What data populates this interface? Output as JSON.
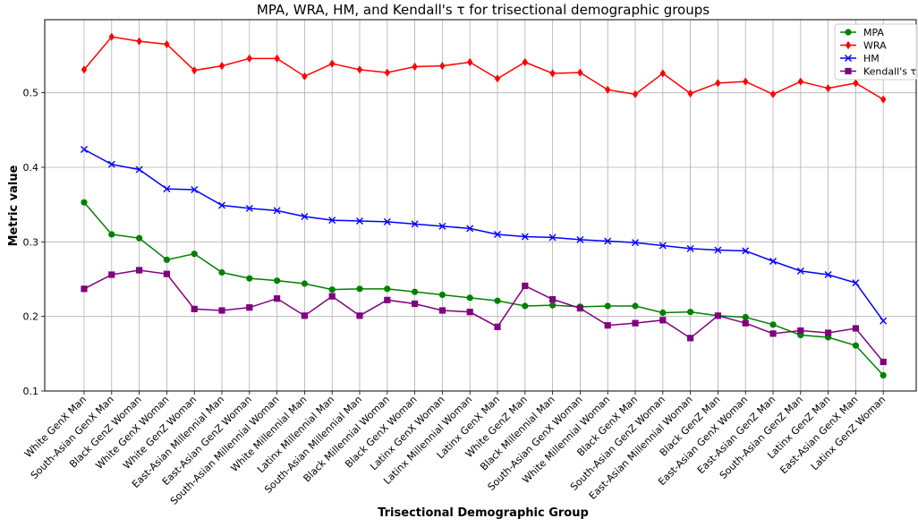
{
  "chart_data": {
    "type": "line",
    "title": "MPA, WRA, HM, and Kendall's τ for trisectional demographic groups",
    "xlabel": "Trisectional Demographic Group",
    "ylabel": "Metric value",
    "ylim": [
      0.1,
      0.598
    ],
    "yticks": [
      "0.1",
      "0.2",
      "0.3",
      "0.4",
      "0.5"
    ],
    "grid": true,
    "legend_position": "top-right",
    "categories": [
      "White GenX Man",
      "South-Asian GenX Man",
      "Black GenZ Woman",
      "White GenX Woman",
      "White GenZ Woman",
      "East-Asian Millennial Man",
      "East-Asian GenZ Woman",
      "South-Asian Millennial Woman",
      "White Millennial Man",
      "Latinx Millennial Man",
      "South-Asian Millennial Man",
      "Black Millennial Woman",
      "Black GenX Woman",
      "Latinx GenX Woman",
      "Latinx Millennial Woman",
      "Latinx GenX Man",
      "White GenZ Man",
      "Black Millennial Man",
      "South-Asian GenX Woman",
      "White Millennial Woman",
      "Black GenX Man",
      "South-Asian GenZ Woman",
      "East-Asian Millennial Woman",
      "Black GenZ Man",
      "East-Asian GenX Woman",
      "East-Asian GenZ Man",
      "South-Asian GenZ Man",
      "Latinx GenZ Man",
      "East-Asian GenX Man",
      "Latinx GenZ Woman"
    ],
    "series": [
      {
        "name": "MPA",
        "color": "#008000",
        "marker": "circle",
        "values": [
          0.353,
          0.31,
          0.305,
          0.276,
          0.284,
          0.259,
          0.251,
          0.248,
          0.244,
          0.236,
          0.237,
          0.237,
          0.233,
          0.229,
          0.225,
          0.221,
          0.214,
          0.215,
          0.213,
          0.214,
          0.214,
          0.205,
          0.206,
          0.201,
          0.199,
          0.189,
          0.175,
          0.172,
          0.161,
          0.121
        ]
      },
      {
        "name": "WRA",
        "color": "#ff0000",
        "marker": "diamond",
        "values": [
          0.531,
          0.575,
          0.569,
          0.565,
          0.53,
          0.536,
          0.546,
          0.546,
          0.522,
          0.539,
          0.531,
          0.527,
          0.535,
          0.536,
          0.541,
          0.519,
          0.541,
          0.526,
          0.527,
          0.504,
          0.498,
          0.526,
          0.499,
          0.513,
          0.515,
          0.498,
          0.515,
          0.506,
          0.513,
          0.491
        ]
      },
      {
        "name": "HM",
        "color": "#0000ff",
        "marker": "x",
        "values": [
          0.424,
          0.404,
          0.397,
          0.371,
          0.37,
          0.349,
          0.345,
          0.342,
          0.334,
          0.329,
          0.328,
          0.327,
          0.324,
          0.321,
          0.318,
          0.31,
          0.307,
          0.306,
          0.303,
          0.301,
          0.299,
          0.295,
          0.291,
          0.289,
          0.288,
          0.274,
          0.261,
          0.256,
          0.245,
          0.194
        ]
      },
      {
        "name": "Kendall's τ",
        "color": "#800080",
        "marker": "square",
        "values": [
          0.237,
          0.256,
          0.262,
          0.257,
          0.21,
          0.208,
          0.212,
          0.224,
          0.201,
          0.227,
          0.201,
          0.222,
          0.217,
          0.208,
          0.206,
          0.186,
          0.241,
          0.223,
          0.211,
          0.188,
          0.191,
          0.195,
          0.171,
          0.201,
          0.191,
          0.177,
          0.181,
          0.178,
          0.184,
          0.139
        ]
      }
    ]
  }
}
